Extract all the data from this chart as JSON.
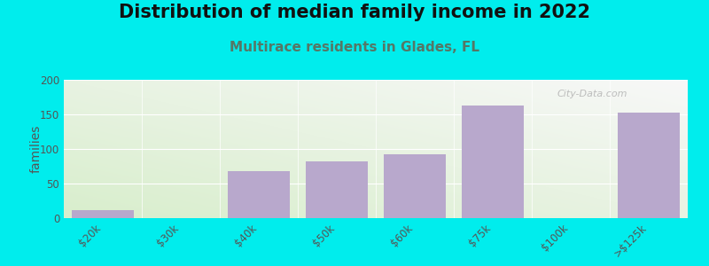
{
  "title": "Distribution of median family income in 2022",
  "subtitle": "Multirace residents in Glades, FL",
  "categories": [
    "$20k",
    "$30k",
    "$40k",
    "$50k",
    "$60k",
    "$75k",
    "$100k",
    ">$125k"
  ],
  "values": [
    12,
    0,
    68,
    82,
    92,
    163,
    0,
    152
  ],
  "bar_color": "#b8a8cc",
  "background_outer": "#00eded",
  "ylabel": "families",
  "ylim": [
    0,
    200
  ],
  "yticks": [
    0,
    50,
    100,
    150,
    200
  ],
  "title_fontsize": 15,
  "subtitle_fontsize": 11,
  "subtitle_color": "#557766",
  "watermark": "City-Data.com",
  "grad_top_color": "#f0f5ec",
  "grad_bottom_color": "#eaf4e0"
}
